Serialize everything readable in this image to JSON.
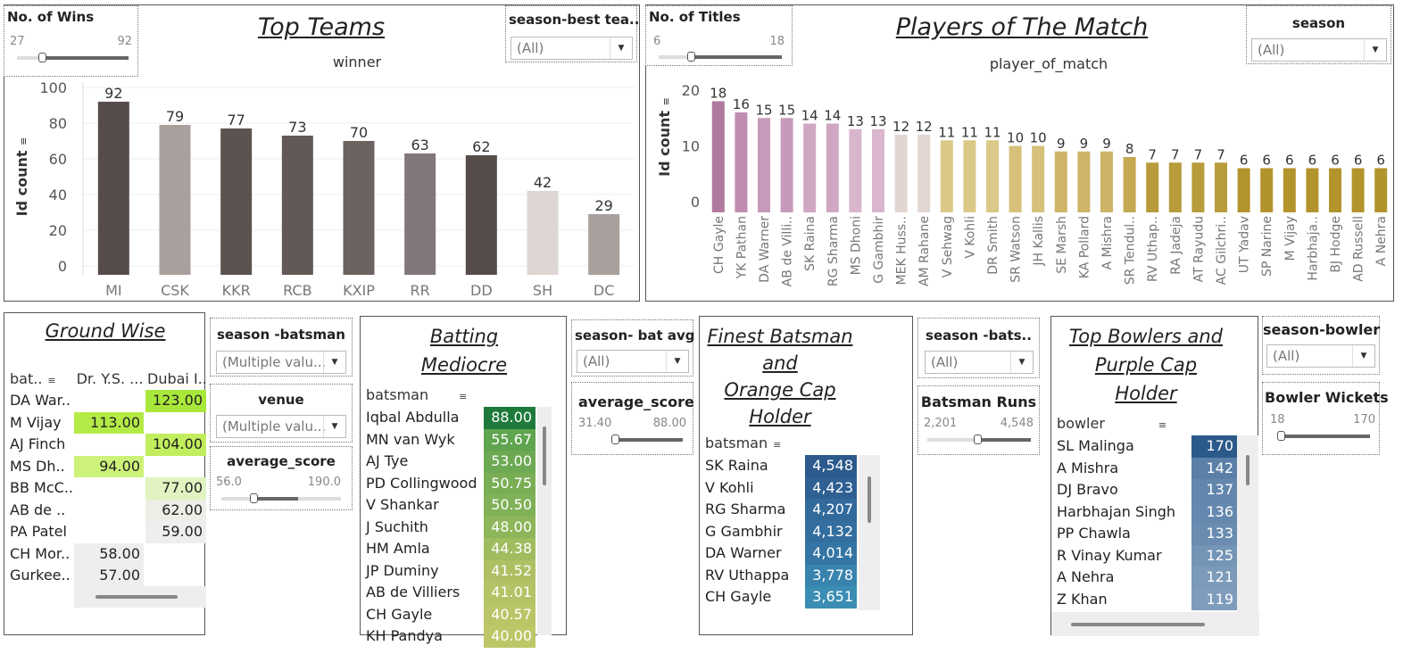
{
  "top_teams": {
    "title": "Top Teams",
    "subtitle": "winner",
    "y_axis_label": "Id count",
    "filter": {
      "label": "No. of Wins",
      "min": "27",
      "max": "92"
    },
    "dropdown": {
      "label": "season-best tea..",
      "value": "(All)"
    }
  },
  "players": {
    "title": "Players of The Match",
    "subtitle": "player_of_match",
    "y_axis_label": "Id count",
    "filter": {
      "label": "No. of Titles",
      "min": "6",
      "max": "18"
    },
    "dropdown": {
      "label": "season",
      "value": "(All)"
    }
  },
  "ground": {
    "title": "Ground Wise",
    "col_header_batsman": "bat..",
    "col_headers": [
      "Dr. Y.S. ...",
      "Dubai I.."
    ],
    "rows": [
      {
        "name": "DA War..",
        "c1": "",
        "c2": "123.00",
        "c1_color": "",
        "c2_color": "#a9e83a"
      },
      {
        "name": "M Vijay",
        "c1": "113.00",
        "c2": "",
        "c1_color": "#b4ea46",
        "c2_color": ""
      },
      {
        "name": "AJ Finch",
        "c1": "",
        "c2": "104.00",
        "c1_color": "",
        "c2_color": "#c2ee5e"
      },
      {
        "name": "MS Dh..",
        "c1": "94.00",
        "c2": "",
        "c1_color": "#cdf27a",
        "c2_color": ""
      },
      {
        "name": "BB McC..",
        "c1": "",
        "c2": "77.00",
        "c1_color": "",
        "c2_color": "#e0f3c0"
      },
      {
        "name": "AB de ..",
        "c1": "",
        "c2": "62.00",
        "c1_color": "",
        "c2_color": "#ecefe6"
      },
      {
        "name": "PA Patel",
        "c1": "",
        "c2": "59.00",
        "c1_color": "",
        "c2_color": "#eeeeee"
      },
      {
        "name": "CH Mor..",
        "c1": "58.00",
        "c2": "",
        "c1_color": "#eeeeee",
        "c2_color": ""
      },
      {
        "name": "Gurkee..",
        "c1": "57.00",
        "c2": "",
        "c1_color": "#eeeeee",
        "c2_color": ""
      }
    ]
  },
  "mid_filters": {
    "season_batsman": {
      "label": "season -batsman",
      "value": "(Multiple valu..."
    },
    "venue": {
      "label": "venue",
      "value": "(Multiple valu..."
    },
    "average_score": {
      "label": "average_score",
      "min": "56.0",
      "max": "190.0"
    }
  },
  "batting": {
    "title_line1": "Batting",
    "title_line2": "Mediocre",
    "header": "batsman",
    "rows": [
      {
        "name": "Iqbal Abdulla",
        "value": "88.00",
        "color": "#1e7a3a"
      },
      {
        "name": "MN van Wyk",
        "value": "55.67",
        "color": "#5fa44e"
      },
      {
        "name": "AJ Tye",
        "value": "53.00",
        "color": "#6ca952"
      },
      {
        "name": "PD Collingwood",
        "value": "50.75",
        "color": "#79ae55"
      },
      {
        "name": "V Shankar",
        "value": "50.50",
        "color": "#80b157"
      },
      {
        "name": "J Suchith",
        "value": "48.00",
        "color": "#8db65a"
      },
      {
        "name": "HM Amla",
        "value": "44.38",
        "color": "#9fbc5f"
      },
      {
        "name": "JP Duminy",
        "value": "41.52",
        "color": "#aec063"
      },
      {
        "name": "AB de Villiers",
        "value": "41.01",
        "color": "#b4c365"
      },
      {
        "name": "CH Gayle",
        "value": "40.57",
        "color": "#b9c566"
      },
      {
        "name": "KH Pandya",
        "value": "40.00",
        "color": "#bec768"
      }
    ]
  },
  "bat_avg_filters": {
    "season": {
      "label": "season- bat avg",
      "value": "(All)"
    },
    "average_score": {
      "label": "average_score",
      "min": "31.40",
      "max": "88.00"
    }
  },
  "finest": {
    "title_lines": [
      "Finest Batsman",
      "and",
      "Orange Cap",
      "Holder"
    ],
    "header": "batsman",
    "rows": [
      {
        "name": "SK Raina",
        "value": "4,548",
        "color": "#2c5a8c"
      },
      {
        "name": "V Kohli",
        "value": "4,423",
        "color": "#2f6093"
      },
      {
        "name": "RG Sharma",
        "value": "4,207",
        "color": "#326a9c"
      },
      {
        "name": "G Gambhir",
        "value": "4,132",
        "color": "#336e9f"
      },
      {
        "name": "DA Warner",
        "value": "4,014",
        "color": "#3475a5"
      },
      {
        "name": "RV Uthappa",
        "value": "3,778",
        "color": "#3884ae"
      },
      {
        "name": "CH Gayle",
        "value": "3,651",
        "color": "#3b8db3"
      }
    ]
  },
  "bats_filters": {
    "season": {
      "label": "season -bats..",
      "value": "(All)"
    },
    "runs": {
      "label": "Batsman Runs",
      "min": "2,201",
      "max": "4,548"
    }
  },
  "bowlers": {
    "title_lines": [
      "Top Bowlers and",
      "Purple Cap",
      "Holder"
    ],
    "header": "bowler",
    "rows": [
      {
        "name": "SL Malinga",
        "value": "170",
        "color": "#2b5a8a"
      },
      {
        "name": "A Mishra",
        "value": "142",
        "color": "#5b80a8"
      },
      {
        "name": "DJ Bravo",
        "value": "137",
        "color": "#6386ad"
      },
      {
        "name": "Harbhajan Singh",
        "value": "136",
        "color": "#6588ae"
      },
      {
        "name": "PP Chawla",
        "value": "133",
        "color": "#6a8cb1"
      },
      {
        "name": "R Vinay Kumar",
        "value": "125",
        "color": "#7595b7"
      },
      {
        "name": "A Nehra",
        "value": "121",
        "color": "#7c9aba"
      },
      {
        "name": "Z Khan",
        "value": "119",
        "color": "#7f9cbc"
      }
    ]
  },
  "bowler_filters": {
    "season": {
      "label": "season-bowler",
      "value": "(All)"
    },
    "wickets": {
      "label": "Bowler Wickets",
      "min": "18",
      "max": "170"
    }
  },
  "chart_data": [
    {
      "type": "bar",
      "title": "Top Teams",
      "xlabel": "winner",
      "ylabel": "Id count",
      "ylim": [
        0,
        100
      ],
      "yticks": [
        0,
        20,
        40,
        60,
        80,
        100
      ],
      "categories": [
        "MI",
        "CSK",
        "KKR",
        "RCB",
        "KXIP",
        "RR",
        "DD",
        "SH",
        "DC"
      ],
      "values": [
        92,
        79,
        77,
        73,
        70,
        63,
        62,
        42,
        29
      ],
      "colors": [
        "#564d4a",
        "#a8a09d",
        "#5c5350",
        "#625956",
        "#6b6360",
        "#80787a",
        "#564d4a",
        "#ddd6d3",
        "#a8a09d"
      ]
    },
    {
      "type": "bar",
      "title": "Players of The Match",
      "xlabel": "player_of_match",
      "ylabel": "Id count",
      "ylim": [
        0,
        20
      ],
      "yticks": [
        0,
        10,
        20
      ],
      "categories": [
        "CH Gayle",
        "YK Pathan",
        "DA Warner",
        "AB de Villi..",
        "SK Raina",
        "RG Sharma",
        "MS Dhoni",
        "G Gambhir",
        "MEK Huss..",
        "AM Rahane",
        "V Sehwag",
        "V Kohli",
        "DR Smith",
        "SR Watson",
        "JH Kallis",
        "SE Marsh",
        "KA Pollard",
        "A Mishra",
        "SR Tendul..",
        "RV Uthap..",
        "RA Jadeja",
        "AT Rayudu",
        "AC Gilchri..",
        "UT Yadav",
        "SP Narine",
        "M Vijay",
        "Harbhaja..",
        "BJ Hodge",
        "AD Russell",
        "A Nehra"
      ],
      "values": [
        18,
        16,
        15,
        15,
        14,
        14,
        13,
        13,
        12,
        12,
        11,
        11,
        11,
        10,
        10,
        9,
        9,
        9,
        8,
        7,
        7,
        7,
        7,
        6,
        6,
        6,
        6,
        6,
        6,
        6
      ],
      "colors": [
        "#b07a9e",
        "#c08db0",
        "#c89ab9",
        "#c89ab9",
        "#d0a7c3",
        "#d0a7c3",
        "#d9b6ce",
        "#d9b6ce",
        "#e1d6d0",
        "#e1d6d0",
        "#dbc988",
        "#dbc988",
        "#dbc988",
        "#d6c07a",
        "#d6c07a",
        "#cdb466",
        "#cdb466",
        "#cdb466",
        "#c4a852",
        "#b89b3a",
        "#b89b3a",
        "#b89b3a",
        "#b89b3a",
        "#b3942c",
        "#b3942c",
        "#b3942c",
        "#b3942c",
        "#b3942c",
        "#b3942c",
        "#b3942c"
      ]
    }
  ]
}
